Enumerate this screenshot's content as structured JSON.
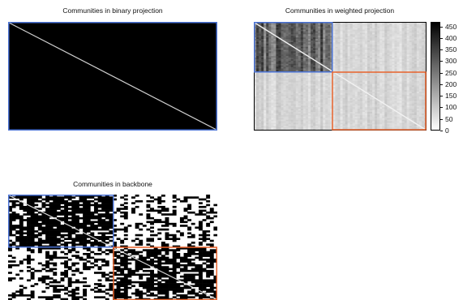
{
  "chart_data": [
    {
      "type": "heatmap",
      "title": "Communities in binary projection",
      "matrix": "all-ones adjacency (black) with empty white diagonal",
      "communities": [
        {
          "color": "#4a72d4",
          "extent": "whole matrix"
        }
      ]
    },
    {
      "type": "heatmap",
      "title": "Communities in weighted projection",
      "matrix": "dense block top-left, light grey elsewhere, white diagonal",
      "communities": [
        {
          "color": "#4a72d4",
          "extent": "top-left block"
        },
        {
          "color": "#e8632c",
          "extent": "bottom-right block"
        }
      ],
      "colorbar": {
        "ticks": [
          "450",
          "400",
          "350",
          "300",
          "250",
          "200",
          "150",
          "100",
          "50",
          "0"
        ],
        "range": [
          0,
          470
        ]
      }
    },
    {
      "type": "heatmap",
      "title": "Communities in backbone",
      "matrix": "binary backbone, denser within communities",
      "communities": [
        {
          "color": "#4a72d4",
          "extent": "top-left block"
        },
        {
          "color": "#e8632c",
          "extent": "bottom-right block"
        }
      ]
    }
  ],
  "colors": {
    "blue_community": "#4a72d4",
    "orange_community": "#e8632c",
    "edge": "#000000",
    "no_edge": "#ffffff"
  }
}
